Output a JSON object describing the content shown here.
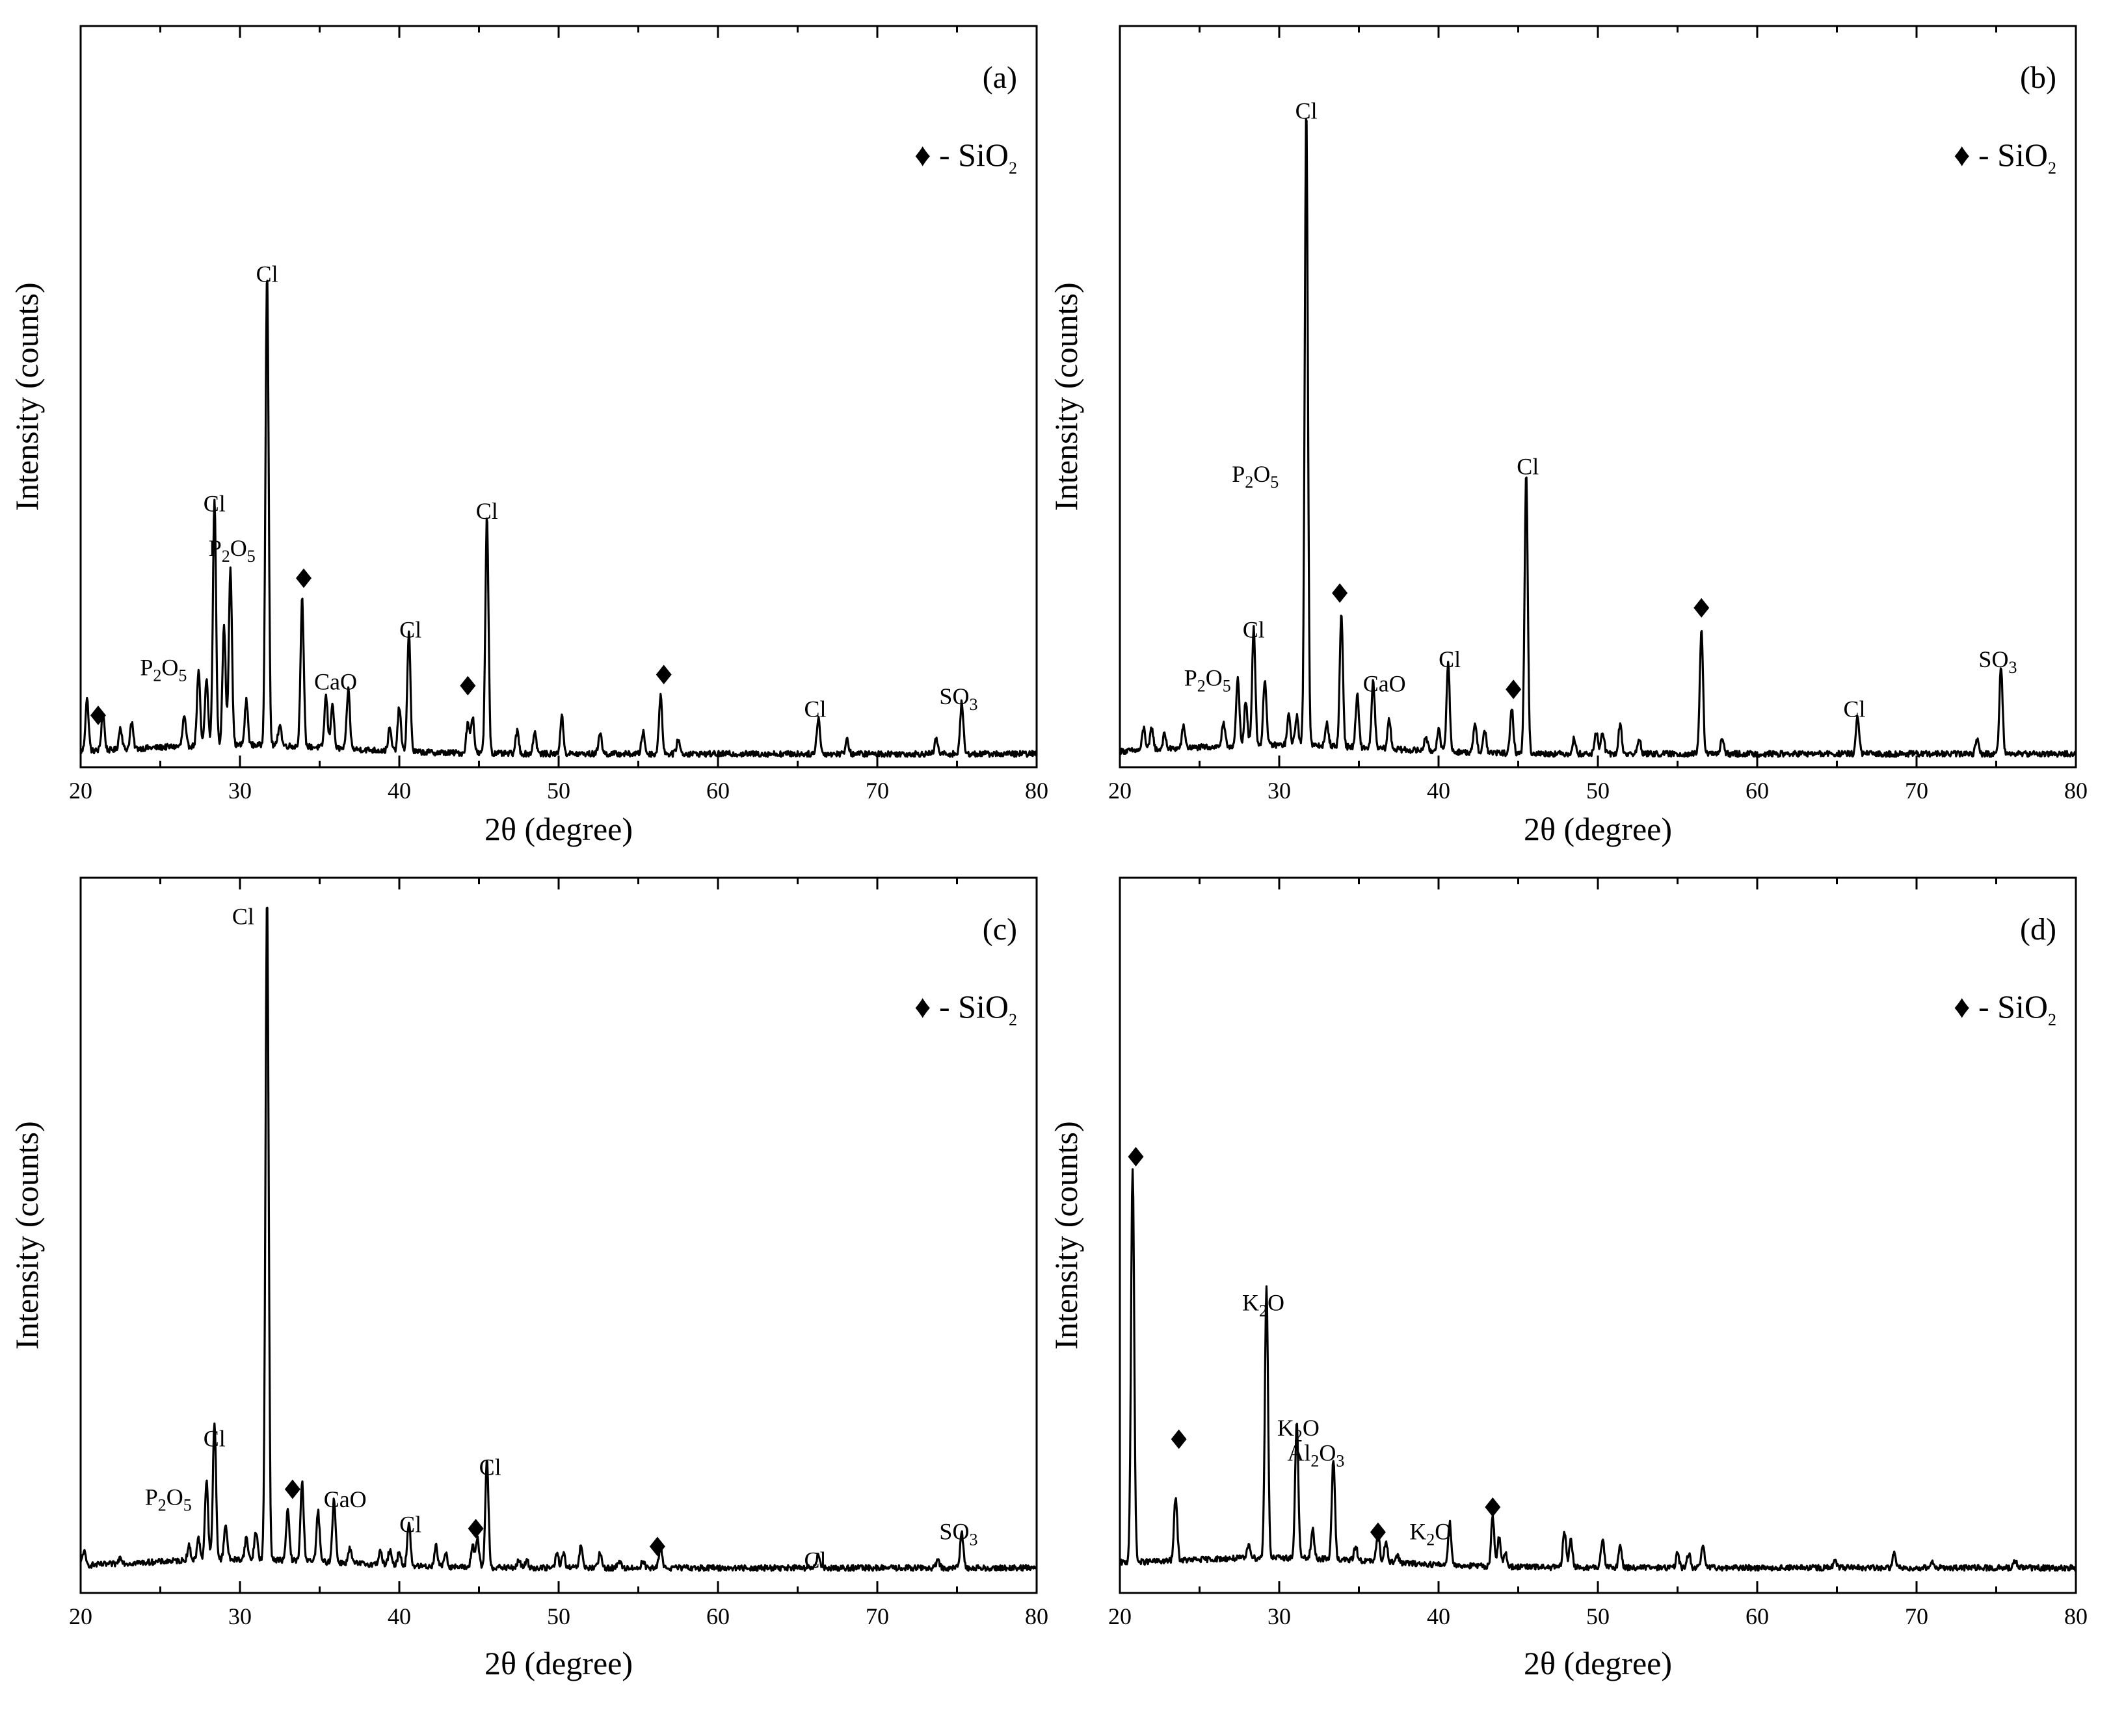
{
  "chart_data": [
    {
      "type": "line",
      "panel": "(a)",
      "xlabel": "2θ (degree)",
      "ylabel": "Intensity (counts)",
      "xlim": [
        20,
        80
      ],
      "ylim": [
        0,
        1.0
      ],
      "xticks": [
        20,
        30,
        40,
        50,
        60,
        70,
        80
      ],
      "legend": {
        "symbol": "♦",
        "text": "- SiO",
        "sub": "2"
      },
      "peaks": [
        {
          "x": 20.4,
          "y": 0.07
        },
        {
          "x": 21.4,
          "y": 0.05
        },
        {
          "x": 22.5,
          "y": 0.03
        },
        {
          "x": 23.2,
          "y": 0.035
        },
        {
          "x": 26.5,
          "y": 0.04
        },
        {
          "x": 27.4,
          "y": 0.1
        },
        {
          "x": 27.9,
          "y": 0.09
        },
        {
          "x": 28.4,
          "y": 0.33
        },
        {
          "x": 29.0,
          "y": 0.16
        },
        {
          "x": 29.4,
          "y": 0.24
        },
        {
          "x": 30.4,
          "y": 0.06
        },
        {
          "x": 31.7,
          "y": 0.64
        },
        {
          "x": 32.5,
          "y": 0.03
        },
        {
          "x": 33.9,
          "y": 0.2
        },
        {
          "x": 35.4,
          "y": 0.07
        },
        {
          "x": 35.8,
          "y": 0.06
        },
        {
          "x": 36.8,
          "y": 0.08
        },
        {
          "x": 39.4,
          "y": 0.03
        },
        {
          "x": 40.0,
          "y": 0.06
        },
        {
          "x": 40.6,
          "y": 0.16
        },
        {
          "x": 44.3,
          "y": 0.04
        },
        {
          "x": 44.6,
          "y": 0.05
        },
        {
          "x": 45.5,
          "y": 0.32
        },
        {
          "x": 47.4,
          "y": 0.03
        },
        {
          "x": 48.5,
          "y": 0.03
        },
        {
          "x": 50.2,
          "y": 0.05
        },
        {
          "x": 52.6,
          "y": 0.03
        },
        {
          "x": 55.3,
          "y": 0.03
        },
        {
          "x": 56.4,
          "y": 0.08
        },
        {
          "x": 57.5,
          "y": 0.02
        },
        {
          "x": 66.3,
          "y": 0.05
        },
        {
          "x": 68.1,
          "y": 0.02
        },
        {
          "x": 73.7,
          "y": 0.02
        },
        {
          "x": 75.3,
          "y": 0.07
        }
      ],
      "annotations": [
        {
          "text": "Cl",
          "x": 28.4,
          "y": 0.345
        },
        {
          "text": "P",
          "sub1": "2",
          "mid": "O",
          "sub2": "5",
          "x": 29.5,
          "y": 0.285
        },
        {
          "text": "Cl",
          "x": 31.7,
          "y": 0.655
        },
        {
          "text": "P",
          "sub1": "2",
          "mid": "O",
          "sub2": "5",
          "x": 25.2,
          "y": 0.124
        },
        {
          "text": "CaO",
          "x": 36.0,
          "y": 0.105
        },
        {
          "text": "Cl",
          "x": 40.7,
          "y": 0.175
        },
        {
          "text": "Cl",
          "x": 45.5,
          "y": 0.335
        },
        {
          "text": "Cl",
          "x": 66.1,
          "y": 0.068
        },
        {
          "text": "SO",
          "sub1": "3",
          "x": 75.1,
          "y": 0.085
        }
      ],
      "markers": [
        {
          "x": 21.1,
          "y": 0.07
        },
        {
          "x": 34.0,
          "y": 0.255
        },
        {
          "x": 44.3,
          "y": 0.11
        },
        {
          "x": 56.6,
          "y": 0.125
        }
      ]
    },
    {
      "type": "line",
      "panel": "(b)",
      "xlabel": "2θ (degree)",
      "ylabel": "Intensity (counts)",
      "xlim": [
        20,
        80
      ],
      "ylim": [
        0,
        1.0
      ],
      "xticks": [
        20,
        30,
        40,
        50,
        60,
        70,
        80
      ],
      "legend": {
        "symbol": "♦",
        "text": "- SiO",
        "sub": "2"
      },
      "peaks": [
        {
          "x": 21.5,
          "y": 0.03
        },
        {
          "x": 22.0,
          "y": 0.03
        },
        {
          "x": 22.8,
          "y": 0.02
        },
        {
          "x": 24.0,
          "y": 0.03
        },
        {
          "x": 26.5,
          "y": 0.03
        },
        {
          "x": 27.4,
          "y": 0.09
        },
        {
          "x": 27.9,
          "y": 0.06
        },
        {
          "x": 28.4,
          "y": 0.16
        },
        {
          "x": 29.1,
          "y": 0.09
        },
        {
          "x": 30.6,
          "y": 0.04
        },
        {
          "x": 31.1,
          "y": 0.04
        },
        {
          "x": 31.7,
          "y": 0.86
        },
        {
          "x": 33.0,
          "y": 0.03
        },
        {
          "x": 33.9,
          "y": 0.18
        },
        {
          "x": 34.9,
          "y": 0.07
        },
        {
          "x": 35.9,
          "y": 0.09
        },
        {
          "x": 36.9,
          "y": 0.04
        },
        {
          "x": 39.2,
          "y": 0.02
        },
        {
          "x": 40.0,
          "y": 0.03
        },
        {
          "x": 40.6,
          "y": 0.12
        },
        {
          "x": 42.3,
          "y": 0.04
        },
        {
          "x": 42.9,
          "y": 0.03
        },
        {
          "x": 44.6,
          "y": 0.06
        },
        {
          "x": 45.5,
          "y": 0.38
        },
        {
          "x": 48.5,
          "y": 0.02
        },
        {
          "x": 49.9,
          "y": 0.03
        },
        {
          "x": 50.3,
          "y": 0.03
        },
        {
          "x": 51.4,
          "y": 0.04
        },
        {
          "x": 52.6,
          "y": 0.02
        },
        {
          "x": 56.5,
          "y": 0.17
        },
        {
          "x": 57.8,
          "y": 0.02
        },
        {
          "x": 66.3,
          "y": 0.05
        },
        {
          "x": 73.8,
          "y": 0.02
        },
        {
          "x": 75.3,
          "y": 0.12
        }
      ],
      "annotations": [
        {
          "text": "Cl",
          "x": 31.7,
          "y": 0.875
        },
        {
          "text": "P",
          "sub1": "2",
          "mid": "O",
          "sub2": "5",
          "x": 28.5,
          "y": 0.385
        },
        {
          "text": "Cl",
          "x": 28.4,
          "y": 0.175
        },
        {
          "text": "P",
          "sub1": "2",
          "mid": "O",
          "sub2": "5",
          "x": 25.5,
          "y": 0.11
        },
        {
          "text": "CaO",
          "x": 36.6,
          "y": 0.102
        },
        {
          "text": "Cl",
          "x": 40.7,
          "y": 0.135
        },
        {
          "text": "Cl",
          "x": 45.6,
          "y": 0.395
        },
        {
          "text": "Cl",
          "x": 66.1,
          "y": 0.068
        },
        {
          "text": "SO",
          "sub1": "3",
          "x": 75.1,
          "y": 0.135
        }
      ],
      "markers": [
        {
          "x": 33.8,
          "y": 0.235
        },
        {
          "x": 44.7,
          "y": 0.105
        },
        {
          "x": 56.5,
          "y": 0.215
        }
      ]
    },
    {
      "type": "line",
      "panel": "(c)",
      "xlabel": "2θ (degree)",
      "ylabel": "Intensity (counts)",
      "xlim": [
        20,
        80
      ],
      "ylim": [
        0,
        1.0
      ],
      "xticks": [
        20,
        30,
        40,
        50,
        60,
        70,
        80
      ],
      "legend": {
        "symbol": "♦",
        "text": "- SiO",
        "sub": "2"
      },
      "peaks": [
        {
          "x": 20.2,
          "y": 0.02
        },
        {
          "x": 22.5,
          "y": 0.01
        },
        {
          "x": 26.8,
          "y": 0.02
        },
        {
          "x": 27.4,
          "y": 0.03
        },
        {
          "x": 27.9,
          "y": 0.11
        },
        {
          "x": 28.4,
          "y": 0.19
        },
        {
          "x": 29.1,
          "y": 0.05
        },
        {
          "x": 30.4,
          "y": 0.03
        },
        {
          "x": 31.0,
          "y": 0.04
        },
        {
          "x": 31.7,
          "y": 0.93
        },
        {
          "x": 33.0,
          "y": 0.07
        },
        {
          "x": 33.9,
          "y": 0.11
        },
        {
          "x": 34.9,
          "y": 0.07
        },
        {
          "x": 35.9,
          "y": 0.09
        },
        {
          "x": 36.9,
          "y": 0.02
        },
        {
          "x": 38.8,
          "y": 0.02
        },
        {
          "x": 39.4,
          "y": 0.02
        },
        {
          "x": 40.0,
          "y": 0.02
        },
        {
          "x": 40.6,
          "y": 0.06
        },
        {
          "x": 42.3,
          "y": 0.03
        },
        {
          "x": 42.9,
          "y": 0.02
        },
        {
          "x": 44.6,
          "y": 0.03
        },
        {
          "x": 44.9,
          "y": 0.04
        },
        {
          "x": 45.5,
          "y": 0.15
        },
        {
          "x": 47.5,
          "y": 0.01
        },
        {
          "x": 48.0,
          "y": 0.01
        },
        {
          "x": 49.9,
          "y": 0.02
        },
        {
          "x": 50.3,
          "y": 0.02
        },
        {
          "x": 51.4,
          "y": 0.03
        },
        {
          "x": 52.6,
          "y": 0.02
        },
        {
          "x": 53.8,
          "y": 0.01
        },
        {
          "x": 55.3,
          "y": 0.01
        },
        {
          "x": 56.4,
          "y": 0.03
        },
        {
          "x": 66.3,
          "y": 0.02
        },
        {
          "x": 73.8,
          "y": 0.01
        },
        {
          "x": 75.3,
          "y": 0.05
        }
      ],
      "annotations": [
        {
          "text": "Cl",
          "x": 30.2,
          "y": 0.935
        },
        {
          "text": "Cl",
          "x": 28.4,
          "y": 0.205
        },
        {
          "text": "P",
          "sub1": "2",
          "mid": "O",
          "sub2": "5",
          "x": 25.5,
          "y": 0.123
        },
        {
          "text": "CaO",
          "x": 36.6,
          "y": 0.12
        },
        {
          "text": "Cl",
          "x": 40.7,
          "y": 0.085
        },
        {
          "text": "Cl",
          "x": 45.7,
          "y": 0.165
        },
        {
          "text": "Cl",
          "x": 66.1,
          "y": 0.035
        },
        {
          "text": "SO",
          "sub1": "3",
          "x": 75.1,
          "y": 0.075
        }
      ],
      "markers": [
        {
          "x": 33.3,
          "y": 0.145
        },
        {
          "x": 44.8,
          "y": 0.09
        },
        {
          "x": 56.2,
          "y": 0.065
        }
      ]
    },
    {
      "type": "line",
      "panel": "(d)",
      "xlabel": "2θ (degree)",
      "ylabel": "Intensity (counts)",
      "xlim": [
        20,
        80
      ],
      "ylim": [
        0,
        1.0
      ],
      "xticks": [
        20,
        30,
        40,
        50,
        60,
        70,
        80
      ],
      "legend": {
        "symbol": "♦",
        "text": "- SiO",
        "sub": "2"
      },
      "peaks": [
        {
          "x": 20.8,
          "y": 0.55
        },
        {
          "x": 23.5,
          "y": 0.09
        },
        {
          "x": 28.1,
          "y": 0.02
        },
        {
          "x": 29.2,
          "y": 0.38
        },
        {
          "x": 31.1,
          "y": 0.19
        },
        {
          "x": 32.1,
          "y": 0.04
        },
        {
          "x": 33.4,
          "y": 0.14
        },
        {
          "x": 34.8,
          "y": 0.02
        },
        {
          "x": 36.2,
          "y": 0.04
        },
        {
          "x": 36.7,
          "y": 0.03
        },
        {
          "x": 37.4,
          "y": 0.01
        },
        {
          "x": 40.7,
          "y": 0.06
        },
        {
          "x": 43.4,
          "y": 0.07
        },
        {
          "x": 43.8,
          "y": 0.04
        },
        {
          "x": 44.2,
          "y": 0.02
        },
        {
          "x": 47.9,
          "y": 0.05
        },
        {
          "x": 48.3,
          "y": 0.04
        },
        {
          "x": 50.3,
          "y": 0.04
        },
        {
          "x": 51.4,
          "y": 0.03
        },
        {
          "x": 55.0,
          "y": 0.02
        },
        {
          "x": 55.7,
          "y": 0.02
        },
        {
          "x": 56.6,
          "y": 0.03
        },
        {
          "x": 64.9,
          "y": 0.01
        },
        {
          "x": 68.6,
          "y": 0.02
        },
        {
          "x": 71.0,
          "y": 0.01
        },
        {
          "x": 76.2,
          "y": 0.01
        }
      ],
      "annotations": [
        {
          "text": "K",
          "sub1": "2",
          "mid": "O",
          "x": 29.0,
          "y": 0.395
        },
        {
          "text": "K",
          "sub1": "2",
          "mid": "O",
          "x": 31.2,
          "y": 0.22
        },
        {
          "text": "Al",
          "sub1": "2",
          "mid": "O",
          "sub2": "3",
          "x": 32.3,
          "y": 0.185
        },
        {
          "text": "K",
          "sub1": "2",
          "mid": "O",
          "x": 39.5,
          "y": 0.075
        }
      ],
      "markers": [
        {
          "x": 21.0,
          "y": 0.61
        },
        {
          "x": 23.7,
          "y": 0.215
        },
        {
          "x": 36.2,
          "y": 0.085
        },
        {
          "x": 43.4,
          "y": 0.12
        }
      ]
    }
  ]
}
